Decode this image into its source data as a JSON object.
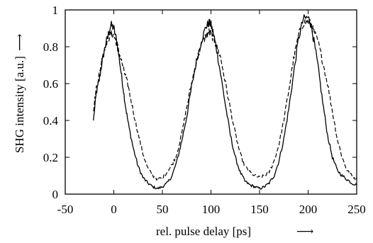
{
  "chart_data": {
    "type": "line",
    "title": "",
    "xlabel": "rel. pulse delay [ps]",
    "ylabel": "SHG intensity [a.u.]",
    "xlabel_arrow": "⟶",
    "ylabel_arrow": "⟶",
    "xlim": [
      -50,
      250
    ],
    "ylim": [
      0,
      1
    ],
    "grid": false,
    "legend": "none",
    "x_ticks": [
      -50,
      0,
      50,
      100,
      150,
      200,
      250
    ],
    "x_tick_labels": [
      "-50",
      "0",
      "50",
      "100",
      "150",
      "200",
      "250"
    ],
    "y_ticks": [
      0,
      0.2,
      0.4,
      0.6,
      0.8,
      1
    ],
    "y_tick_labels": [
      "0",
      "0.2",
      "0.4",
      "0.6",
      "0.8",
      "1"
    ],
    "series": [
      {
        "style": "solid",
        "color": "#000000",
        "x": [
          -21,
          -18,
          -15,
          -12,
          -9,
          -6,
          -3,
          0,
          3,
          6,
          9,
          12,
          15,
          20,
          25,
          30,
          35,
          40,
          45,
          50,
          55,
          60,
          65,
          70,
          75,
          80,
          85,
          90,
          95,
          98,
          100,
          103,
          106,
          110,
          115,
          120,
          125,
          130,
          135,
          140,
          145,
          150,
          155,
          160,
          165,
          170,
          175,
          180,
          185,
          190,
          195,
          200,
          203,
          206,
          210,
          215,
          220,
          225,
          230,
          235,
          240,
          245,
          250
        ],
        "y": [
          0.4,
          0.55,
          0.62,
          0.72,
          0.8,
          0.86,
          0.92,
          0.9,
          0.83,
          0.72,
          0.6,
          0.48,
          0.38,
          0.25,
          0.15,
          0.09,
          0.06,
          0.04,
          0.03,
          0.04,
          0.06,
          0.1,
          0.18,
          0.29,
          0.42,
          0.58,
          0.72,
          0.83,
          0.91,
          0.93,
          0.92,
          0.86,
          0.78,
          0.65,
          0.48,
          0.32,
          0.2,
          0.12,
          0.07,
          0.05,
          0.04,
          0.03,
          0.04,
          0.06,
          0.1,
          0.18,
          0.3,
          0.46,
          0.65,
          0.84,
          0.95,
          0.96,
          0.92,
          0.83,
          0.7,
          0.5,
          0.32,
          0.2,
          0.13,
          0.1,
          0.08,
          0.06,
          0.05
        ]
      },
      {
        "style": "dashed",
        "color": "#000000",
        "x": [
          -21,
          -18,
          -15,
          -12,
          -9,
          -6,
          -3,
          0,
          3,
          6,
          9,
          12,
          15,
          20,
          25,
          30,
          35,
          40,
          45,
          50,
          55,
          60,
          65,
          70,
          75,
          80,
          85,
          90,
          95,
          98,
          100,
          103,
          106,
          110,
          115,
          120,
          125,
          130,
          135,
          140,
          145,
          150,
          155,
          160,
          165,
          170,
          175,
          180,
          185,
          190,
          195,
          200,
          203,
          206,
          210,
          215,
          220,
          225,
          230,
          235,
          240,
          245,
          250
        ],
        "y": [
          0.45,
          0.58,
          0.65,
          0.74,
          0.8,
          0.84,
          0.87,
          0.86,
          0.82,
          0.76,
          0.7,
          0.64,
          0.58,
          0.45,
          0.33,
          0.22,
          0.14,
          0.1,
          0.08,
          0.09,
          0.12,
          0.16,
          0.22,
          0.33,
          0.47,
          0.6,
          0.72,
          0.81,
          0.86,
          0.88,
          0.87,
          0.84,
          0.8,
          0.74,
          0.6,
          0.46,
          0.33,
          0.22,
          0.15,
          0.12,
          0.1,
          0.09,
          0.1,
          0.12,
          0.18,
          0.27,
          0.4,
          0.56,
          0.73,
          0.86,
          0.93,
          0.94,
          0.92,
          0.88,
          0.83,
          0.72,
          0.6,
          0.45,
          0.3,
          0.2,
          0.13,
          0.1,
          0.08
        ]
      }
    ]
  }
}
